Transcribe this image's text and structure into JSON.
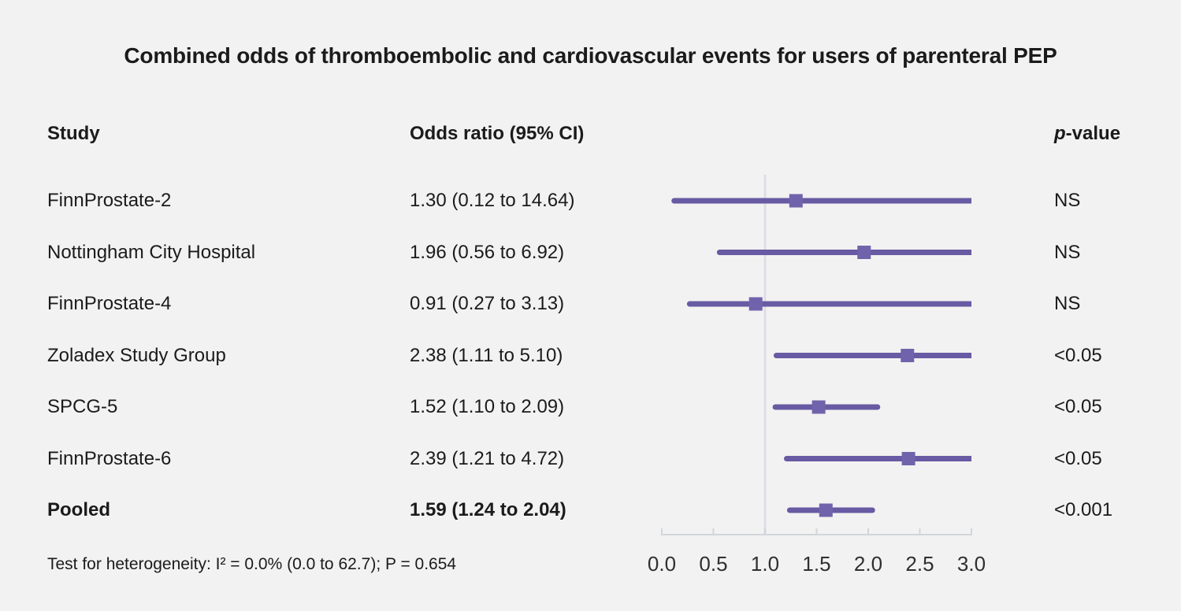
{
  "page": {
    "title": "Combined odds of thromboembolic and cardiovascular events for users of parenteral PEP",
    "background_color": "#f2f2f2"
  },
  "table": {
    "headers": {
      "study": "Study",
      "odds_ratio": "Odds ratio (95% CI)",
      "p_italic": "p",
      "p_rest": "-value"
    },
    "rows": [
      {
        "study": "FinnProstate-2",
        "or_label": "1.30 (0.12 to 14.64)",
        "p": "NS"
      },
      {
        "study": "Nottingham City Hospital",
        "or_label": "1.96 (0.56 to 6.92)",
        "p": "NS"
      },
      {
        "study": "FinnProstate-4",
        "or_label": "0.91 (0.27 to 3.13)",
        "p": "NS"
      },
      {
        "study": "Zoladex Study Group",
        "or_label": "2.38 (1.11 to 5.10)",
        "p": "<0.05"
      },
      {
        "study": "SPCG-5",
        "or_label": "1.52 (1.10 to 2.09)",
        "p": "<0.05"
      },
      {
        "study": "FinnProstate-6",
        "or_label": "2.39 (1.21 to 4.72)",
        "p": "<0.05"
      },
      {
        "study": "Pooled",
        "or_label": "1.59 (1.24 to 2.04)",
        "p": "<0.001"
      }
    ],
    "footnote": "Test for heterogeneity: I² = 0.0% (0.0 to 62.7); P = 0.654"
  },
  "chart_data": {
    "type": "forest",
    "title": "Combined odds of thromboembolic and cardiovascular events for users of parenteral PEP",
    "xlabel": "",
    "ylabel": "",
    "xlim": [
      0.0,
      3.0
    ],
    "x_ticks": [
      0.0,
      0.5,
      1.0,
      1.5,
      2.0,
      2.5,
      3.0
    ],
    "x_tick_labels": [
      "0.0",
      "0.5",
      "1.0",
      "1.5",
      "2.0",
      "2.5",
      "3.0"
    ],
    "reference_line": 1.0,
    "grid": false,
    "legend": false,
    "studies": [
      {
        "name": "FinnProstate-2",
        "or": 1.3,
        "ci_low": 0.12,
        "ci_high": 14.64,
        "p_value": "NS",
        "pooled": false
      },
      {
        "name": "Nottingham City Hospital",
        "or": 1.96,
        "ci_low": 0.56,
        "ci_high": 6.92,
        "p_value": "NS",
        "pooled": false
      },
      {
        "name": "FinnProstate-4",
        "or": 0.91,
        "ci_low": 0.27,
        "ci_high": 3.13,
        "p_value": "NS",
        "pooled": false
      },
      {
        "name": "Zoladex Study Group",
        "or": 2.38,
        "ci_low": 1.11,
        "ci_high": 5.1,
        "p_value": "<0.05",
        "pooled": false
      },
      {
        "name": "SPCG-5",
        "or": 1.52,
        "ci_low": 1.1,
        "ci_high": 2.09,
        "p_value": "<0.05",
        "pooled": false
      },
      {
        "name": "FinnProstate-6",
        "or": 2.39,
        "ci_low": 1.21,
        "ci_high": 4.72,
        "p_value": "<0.05",
        "pooled": false
      },
      {
        "name": "Pooled",
        "or": 1.59,
        "ci_low": 1.24,
        "ci_high": 2.04,
        "p_value": "<0.001",
        "pooled": true
      }
    ],
    "heterogeneity_note": "Test for heterogeneity: I² = 0.0% (0.0 to 62.7); P = 0.654",
    "colors": {
      "ci_line": "#685aa3",
      "marker": "#7163ab",
      "reference_line": "#dcdfe4",
      "axis": "#d2d5da",
      "axis_text": "#2f2f2f",
      "text": "#1b1b1b",
      "background": "#f2f2f2"
    }
  }
}
